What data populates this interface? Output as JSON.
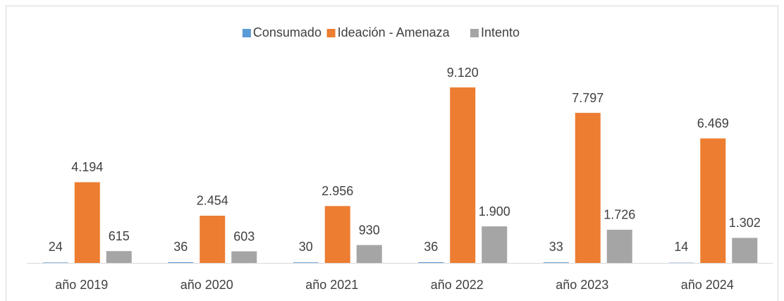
{
  "chart_data": {
    "type": "bar",
    "categories": [
      "año 2019",
      "año 2020",
      "año 2021",
      "año 2022",
      "año 2023",
      "año 2024"
    ],
    "series": [
      {
        "name": "Consumado",
        "color": "#5b9bd5",
        "values": [
          24,
          36,
          30,
          36,
          33,
          14
        ]
      },
      {
        "name": "Ideación - Amenaza",
        "color": "#ed7d31",
        "values": [
          4194,
          2454,
          2956,
          9120,
          7797,
          6469
        ],
        "value_labels": [
          "4.194",
          "2.454",
          "2.956",
          "9.120",
          "7.797",
          "6.469"
        ]
      },
      {
        "name": "Intento",
        "color": "#a5a5a5",
        "values": [
          615,
          603,
          930,
          1900,
          1726,
          1302
        ],
        "value_labels": [
          "615",
          "603",
          "930",
          "1.900",
          "1.726",
          "1.302"
        ]
      }
    ],
    "legend": "top"
  }
}
